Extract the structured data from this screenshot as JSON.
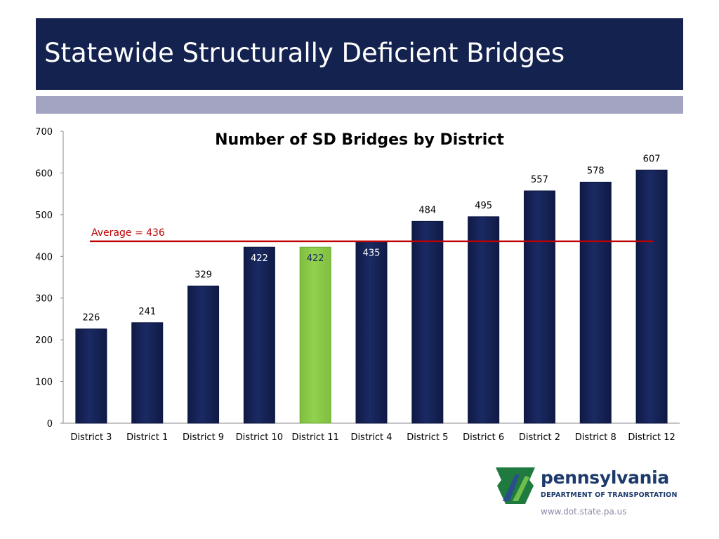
{
  "slide": {
    "title": "Statewide Structurally Deficient Bridges"
  },
  "logo": {
    "name": "pennsylvania",
    "subtitle": "DEPARTMENT OF TRANSPORTATION",
    "url": "www.dot.state.pa.us"
  },
  "chart_data": {
    "type": "bar",
    "title": "Number of SD Bridges by District",
    "xlabel": "",
    "ylabel": "",
    "categories": [
      "District 3",
      "District 1",
      "District 9",
      "District 10",
      "District 11",
      "District 4",
      "District 5",
      "District 6",
      "District 2",
      "District 8",
      "District 12"
    ],
    "values": [
      226,
      241,
      329,
      422,
      422,
      435,
      484,
      495,
      557,
      578,
      607
    ],
    "ylim": [
      0,
      700
    ],
    "yticks": [
      0,
      100,
      200,
      300,
      400,
      500,
      600,
      700
    ],
    "highlight_category": "District 11",
    "reference_line": {
      "label": "Average = 436",
      "value": 436
    },
    "colors": {
      "bar": "#1a2a63",
      "highlight": "#92d050",
      "reference": "#c00000",
      "label_inside": "#ffffff",
      "label_inside_highlight": "#1a2a63"
    },
    "grid": false,
    "legend": "none"
  }
}
